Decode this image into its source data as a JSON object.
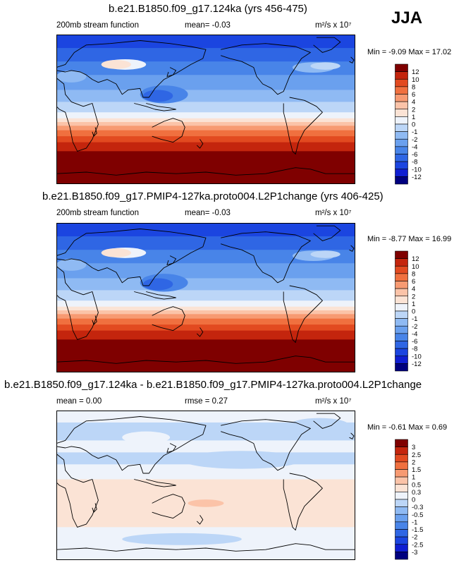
{
  "season": "JJA",
  "panels": [
    {
      "title": "b.e21.B1850.f09_g17.124ka (yrs 456-475)",
      "left_label": "200mb stream function",
      "stat_label": "mean= -0.03",
      "units": "m²/s x 10⁷",
      "min_max": "Min = -9.09 Max = 17.02",
      "colorbar_labels": [
        "12",
        "10",
        "8",
        "6",
        "4",
        "2",
        "1",
        "0",
        "-1",
        "-2",
        "-4",
        "-6",
        "-8",
        "-10",
        "-12"
      ]
    },
    {
      "title": "b.e21.B1850.f09_g17.PMIP4-127ka.proto004.L2P1change (yrs 406-425)",
      "left_label": "200mb stream function",
      "stat_label": "mean= -0.03",
      "units": "m²/s x 10⁷",
      "min_max": "Min = -8.77 Max = 16.99",
      "colorbar_labels": [
        "12",
        "10",
        "8",
        "6",
        "4",
        "2",
        "1",
        "0",
        "-1",
        "-2",
        "-4",
        "-6",
        "-8",
        "-10",
        "-12"
      ]
    },
    {
      "title": "b.e21.B1850.f09_g17.124ka - b.e21.B1850.f09_g17.PMIP4-127ka.proto004.L2P1change",
      "left_label": "mean = 0.00",
      "stat_label": "rmse = 0.27",
      "units": "m²/s x 10⁷",
      "min_max": "Min = -0.61 Max = 0.69",
      "colorbar_labels": [
        "3",
        "2.5",
        "2",
        "1.5",
        "1",
        "0.5",
        "0.3",
        "0",
        "-0.3",
        "-0.5",
        "-1",
        "-1.5",
        "-2",
        "-2.5",
        "-3"
      ]
    }
  ],
  "chart_data": [
    {
      "type": "heatmap",
      "title": "b.e21.B1850.f09_g17.124ka (yrs 456-475)",
      "variable": "200mb stream function",
      "units": "m²/s x 10⁷",
      "mean": -0.03,
      "min": -9.09,
      "max": 17.02,
      "levels": [
        -12,
        -10,
        -8,
        -6,
        -4,
        -2,
        -1,
        0,
        1,
        2,
        4,
        6,
        8,
        10,
        12
      ],
      "colors": [
        "#00007f",
        "#0f1ed2",
        "#1b45e0",
        "#2f66e4",
        "#4884e8",
        "#6aa0ee",
        "#8fbaf3",
        "#bcd6f7",
        "#eef3fb",
        "#fbe3d5",
        "#fbc3a8",
        "#f79a72",
        "#f0703f",
        "#e24a20",
        "#c4250d",
        "#7f0000"
      ],
      "bands": [
        {
          "top": 0.0,
          "color": "#1b45e0"
        },
        {
          "top": 0.09,
          "color": "#2f66e4"
        },
        {
          "top": 0.18,
          "color": "#4884e8"
        },
        {
          "top": 0.27,
          "color": "#6aa0ee"
        },
        {
          "top": 0.37,
          "color": "#8fbaf3"
        },
        {
          "top": 0.45,
          "color": "#bcd6f7"
        },
        {
          "top": 0.52,
          "color": "#eef3fb"
        },
        {
          "top": 0.56,
          "color": "#fbe3d5"
        },
        {
          "top": 0.585,
          "color": "#fbc3a8"
        },
        {
          "top": 0.61,
          "color": "#f79a72"
        },
        {
          "top": 0.64,
          "color": "#f0703f"
        },
        {
          "top": 0.68,
          "color": "#e24a20"
        },
        {
          "top": 0.72,
          "color": "#c4250d"
        },
        {
          "top": 0.78,
          "color": "#7f0000"
        }
      ],
      "blobs": [
        {
          "cx": 0.36,
          "cy": 0.4,
          "rx": 0.08,
          "ry": 0.06,
          "color": "#4884e8"
        },
        {
          "cx": 0.34,
          "cy": 0.41,
          "rx": 0.05,
          "ry": 0.04,
          "color": "#2f66e4"
        },
        {
          "cx": 0.23,
          "cy": 0.2,
          "rx": 0.07,
          "ry": 0.035,
          "color": "#eef3fb"
        },
        {
          "cx": 0.2,
          "cy": 0.2,
          "rx": 0.05,
          "ry": 0.03,
          "color": "#fbe3d5"
        },
        {
          "cx": 0.86,
          "cy": 0.22,
          "rx": 0.07,
          "ry": 0.035,
          "color": "#8fbaf3"
        },
        {
          "cx": 0.9,
          "cy": 0.21,
          "rx": 0.05,
          "ry": 0.025,
          "color": "#bcd6f7"
        },
        {
          "cx": 0.05,
          "cy": 0.28,
          "rx": 0.05,
          "ry": 0.04,
          "color": "#8fbaf3"
        }
      ]
    },
    {
      "type": "heatmap",
      "title": "b.e21.B1850.f09_g17.PMIP4-127ka.proto004.L2P1change (yrs 406-425)",
      "variable": "200mb stream function",
      "units": "m²/s x 10⁷",
      "mean": -0.03,
      "min": -8.77,
      "max": 16.99,
      "levels": [
        -12,
        -10,
        -8,
        -6,
        -4,
        -2,
        -1,
        0,
        1,
        2,
        4,
        6,
        8,
        10,
        12
      ],
      "colors": [
        "#00007f",
        "#0f1ed2",
        "#1b45e0",
        "#2f66e4",
        "#4884e8",
        "#6aa0ee",
        "#8fbaf3",
        "#bcd6f7",
        "#eef3fb",
        "#fbe3d5",
        "#fbc3a8",
        "#f79a72",
        "#f0703f",
        "#e24a20",
        "#c4250d",
        "#7f0000"
      ],
      "bands": [
        {
          "top": 0.0,
          "color": "#1b45e0"
        },
        {
          "top": 0.09,
          "color": "#2f66e4"
        },
        {
          "top": 0.18,
          "color": "#4884e8"
        },
        {
          "top": 0.27,
          "color": "#6aa0ee"
        },
        {
          "top": 0.37,
          "color": "#8fbaf3"
        },
        {
          "top": 0.45,
          "color": "#bcd6f7"
        },
        {
          "top": 0.52,
          "color": "#eef3fb"
        },
        {
          "top": 0.56,
          "color": "#fbe3d5"
        },
        {
          "top": 0.585,
          "color": "#fbc3a8"
        },
        {
          "top": 0.61,
          "color": "#f79a72"
        },
        {
          "top": 0.64,
          "color": "#f0703f"
        },
        {
          "top": 0.68,
          "color": "#e24a20"
        },
        {
          "top": 0.72,
          "color": "#c4250d"
        },
        {
          "top": 0.78,
          "color": "#7f0000"
        }
      ],
      "blobs": [
        {
          "cx": 0.36,
          "cy": 0.4,
          "rx": 0.08,
          "ry": 0.06,
          "color": "#4884e8"
        },
        {
          "cx": 0.34,
          "cy": 0.41,
          "rx": 0.05,
          "ry": 0.04,
          "color": "#2f66e4"
        },
        {
          "cx": 0.23,
          "cy": 0.2,
          "rx": 0.07,
          "ry": 0.035,
          "color": "#eef3fb"
        },
        {
          "cx": 0.2,
          "cy": 0.2,
          "rx": 0.05,
          "ry": 0.03,
          "color": "#fbe3d5"
        },
        {
          "cx": 0.86,
          "cy": 0.22,
          "rx": 0.07,
          "ry": 0.035,
          "color": "#8fbaf3"
        },
        {
          "cx": 0.9,
          "cy": 0.21,
          "rx": 0.05,
          "ry": 0.025,
          "color": "#bcd6f7"
        },
        {
          "cx": 0.05,
          "cy": 0.28,
          "rx": 0.05,
          "ry": 0.04,
          "color": "#8fbaf3"
        }
      ]
    },
    {
      "type": "heatmap",
      "title": "b.e21.B1850.f09_g17.124ka - b.e21.B1850.f09_g17.PMIP4-127ka.proto004.L2P1change",
      "units": "m²/s x 10⁷",
      "mean": 0.0,
      "rmse": 0.27,
      "min": -0.61,
      "max": 0.69,
      "levels": [
        -3,
        -2.5,
        -2,
        -1.5,
        -1,
        -0.5,
        -0.3,
        0,
        0.3,
        0.5,
        1,
        1.5,
        2,
        2.5,
        3
      ],
      "colors": [
        "#00007f",
        "#0f1ed2",
        "#1b45e0",
        "#2f66e4",
        "#4884e8",
        "#6aa0ee",
        "#8fbaf3",
        "#bcd6f7",
        "#eef3fb",
        "#fbe3d5",
        "#fbc3a8",
        "#f79a72",
        "#f0703f",
        "#e24a20",
        "#c4250d",
        "#7f0000"
      ],
      "bands": [
        {
          "top": 0.0,
          "color": "#eef3fb"
        },
        {
          "top": 0.08,
          "color": "#bcd6f7"
        },
        {
          "top": 0.2,
          "color": "#eef3fb"
        },
        {
          "top": 0.28,
          "color": "#bcd6f7"
        },
        {
          "top": 0.36,
          "color": "#eef3fb"
        },
        {
          "top": 0.46,
          "color": "#fbe3d5"
        },
        {
          "top": 0.78,
          "color": "#eef3fb"
        }
      ],
      "blobs": [
        {
          "cx": 0.62,
          "cy": 0.33,
          "rx": 0.2,
          "ry": 0.06,
          "color": "#bcd6f7"
        },
        {
          "cx": 0.3,
          "cy": 0.18,
          "rx": 0.08,
          "ry": 0.04,
          "color": "#eef3fb"
        },
        {
          "cx": 0.5,
          "cy": 0.62,
          "rx": 0.06,
          "ry": 0.025,
          "color": "#fbc3a8"
        },
        {
          "cx": 0.42,
          "cy": 0.86,
          "rx": 0.2,
          "ry": 0.04,
          "color": "#bcd6f7"
        },
        {
          "cx": 0.8,
          "cy": 0.56,
          "rx": 0.1,
          "ry": 0.04,
          "color": "#fbe3d5"
        },
        {
          "cx": 0.88,
          "cy": 0.1,
          "rx": 0.1,
          "ry": 0.05,
          "color": "#bcd6f7"
        }
      ]
    }
  ]
}
